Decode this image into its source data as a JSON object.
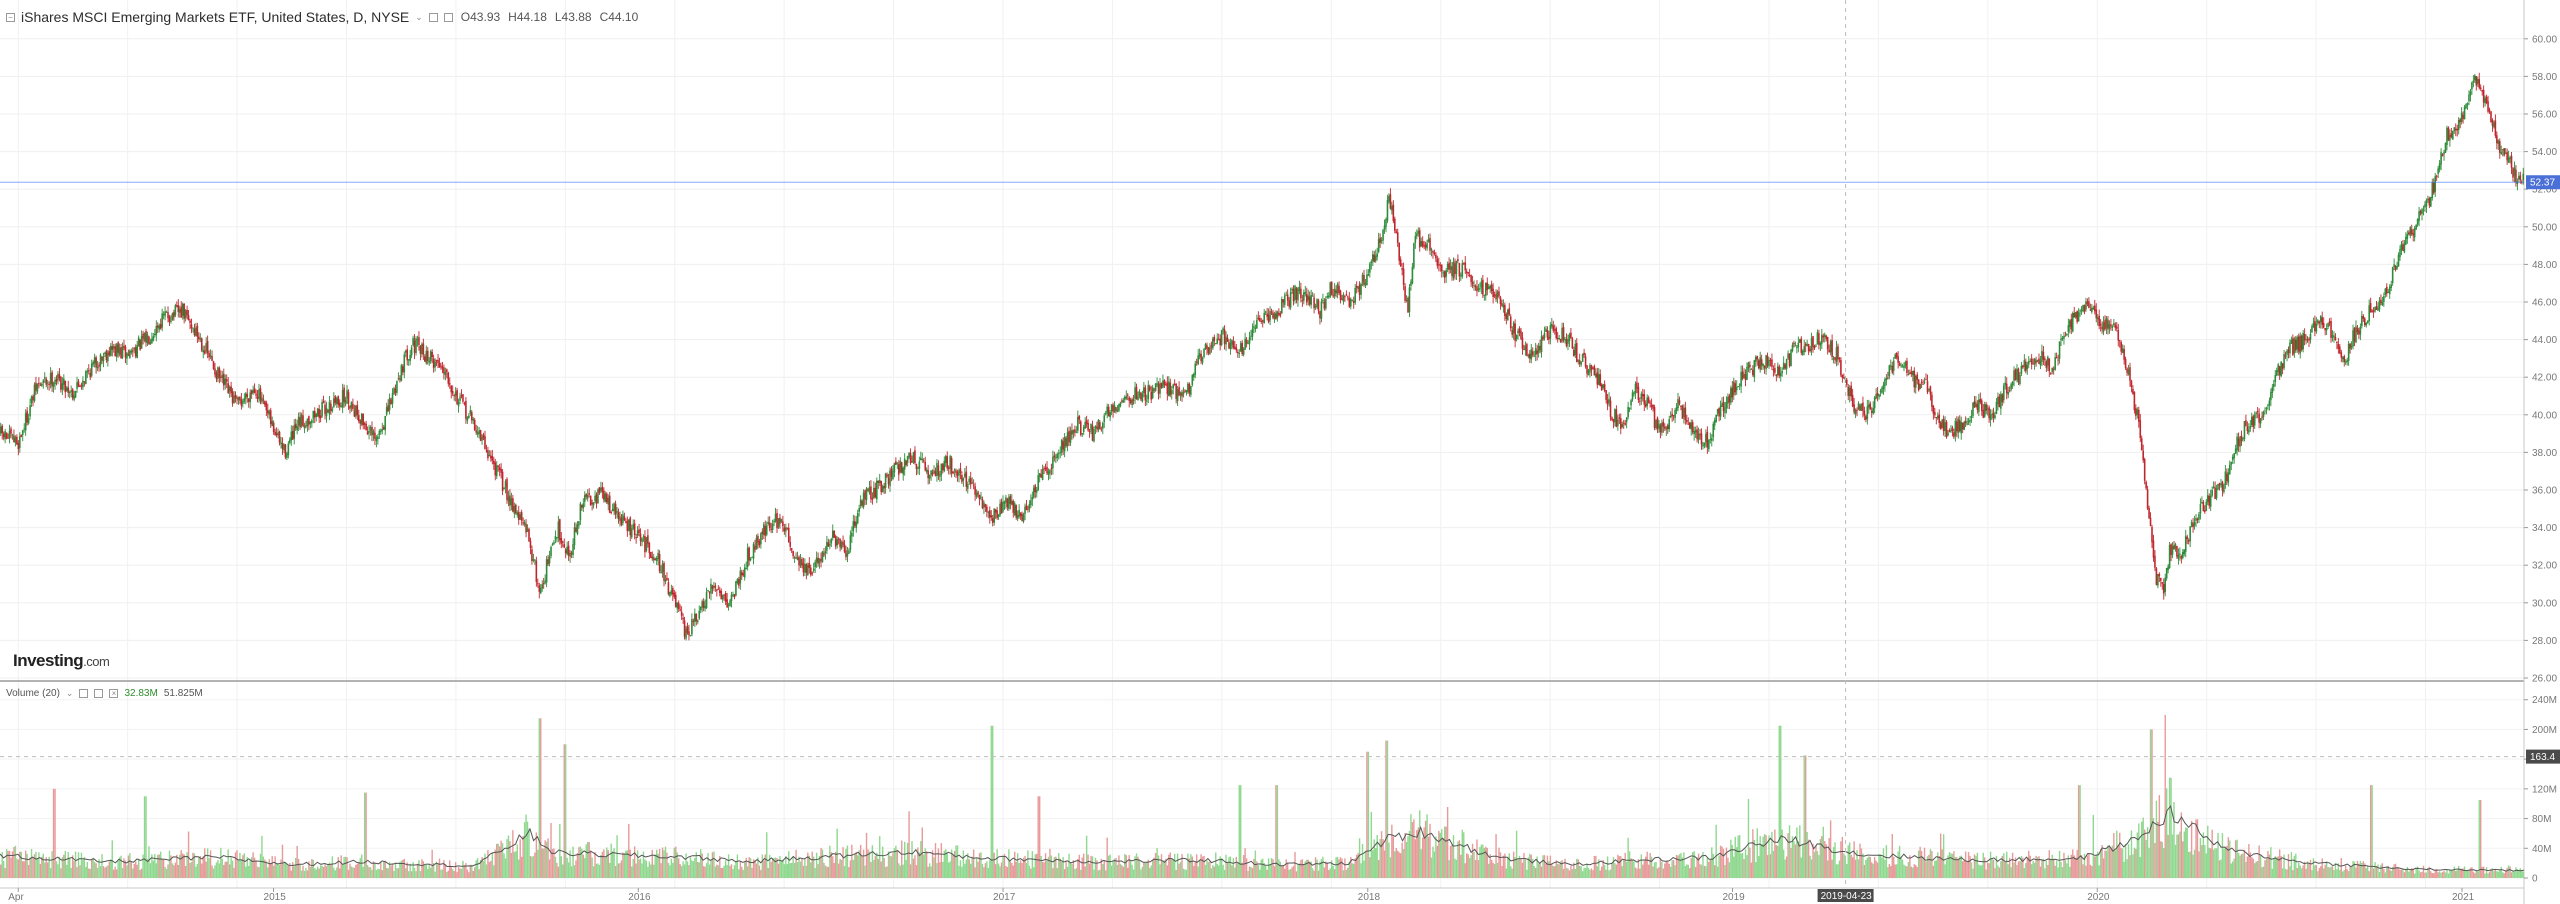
{
  "header": {
    "symbol_title": "iShares MSCI Emerging Markets ETF, United States, D, NYSE",
    "open": "O43.93",
    "high": "H44.18",
    "low": "L43.88",
    "close": "C44.10"
  },
  "volume_pane": {
    "title": "Volume (20)",
    "value_1": "32.83M",
    "value_2": "51.825M"
  },
  "brand": {
    "name": "Investing",
    "suffix": ".com"
  },
  "price_badge": "52.37",
  "volume_badge": "163.4",
  "crosshair_date": "2019-04-23",
  "colors": {
    "up": "#2e8b3a",
    "down": "#c0262d",
    "vol_up": "#8fd88f",
    "vol_down": "#e89a9a",
    "price_line": "#2962ff",
    "badge": "#4a6fd6",
    "volume_ma": "#555555"
  },
  "chart_data": {
    "type": "candlestick",
    "title": "iShares MSCI Emerging Markets ETF, United States, D, NYSE",
    "price_axis": {
      "range": [
        26,
        61
      ],
      "ticks": [
        "26.00",
        "28.00",
        "30.00",
        "32.00",
        "34.00",
        "36.00",
        "38.00",
        "40.00",
        "42.00",
        "44.00",
        "46.00",
        "48.00",
        "50.00",
        "52.00",
        "54.00",
        "56.00",
        "58.00",
        "60.00"
      ]
    },
    "volume_axis": {
      "range": [
        0,
        245
      ],
      "ticks": [
        "0",
        "40M",
        "80M",
        "120M",
        "160M",
        "200M",
        "240M"
      ]
    },
    "x_axis": {
      "labels": [
        {
          "label": "Apr",
          "t": 0.05
        },
        {
          "label": "2015",
          "t": 0.75
        },
        {
          "label": "2016",
          "t": 1.75
        },
        {
          "label": "2017",
          "t": 2.75
        },
        {
          "label": "2018",
          "t": 3.75
        },
        {
          "label": "2019",
          "t": 4.75
        },
        {
          "label": "2020",
          "t": 5.75
        },
        {
          "label": "2021",
          "t": 6.75
        }
      ],
      "t_range": [
        0,
        6.92
      ]
    },
    "crosshair": {
      "t": 5.06,
      "volume": 163.4
    },
    "current_price": 52.37,
    "price_path": [
      [
        0.0,
        39.0
      ],
      [
        0.05,
        38.5
      ],
      [
        0.1,
        41.5
      ],
      [
        0.15,
        42.0
      ],
      [
        0.2,
        41.2
      ],
      [
        0.25,
        42.5
      ],
      [
        0.3,
        43.5
      ],
      [
        0.35,
        43.2
      ],
      [
        0.4,
        44.0
      ],
      [
        0.45,
        45.2
      ],
      [
        0.5,
        45.5
      ],
      [
        0.55,
        44.0
      ],
      [
        0.6,
        42.0
      ],
      [
        0.65,
        40.5
      ],
      [
        0.7,
        41.5
      ],
      [
        0.72,
        40.5
      ],
      [
        0.78,
        38.0
      ],
      [
        0.82,
        39.5
      ],
      [
        0.88,
        40.2
      ],
      [
        0.95,
        41.0
      ],
      [
        1.0,
        39.5
      ],
      [
        1.03,
        38.5
      ],
      [
        1.06,
        40.0
      ],
      [
        1.1,
        42.5
      ],
      [
        1.13,
        43.8
      ],
      [
        1.18,
        43.0
      ],
      [
        1.22,
        42.5
      ],
      [
        1.25,
        41.0
      ],
      [
        1.3,
        39.5
      ],
      [
        1.35,
        37.5
      ],
      [
        1.4,
        35.5
      ],
      [
        1.45,
        33.5
      ],
      [
        1.48,
        30.5
      ],
      [
        1.5,
        32.0
      ],
      [
        1.53,
        34.0
      ],
      [
        1.56,
        32.5
      ],
      [
        1.6,
        35.5
      ],
      [
        1.65,
        35.8
      ],
      [
        1.7,
        34.5
      ],
      [
        1.75,
        33.5
      ],
      [
        1.8,
        32.5
      ],
      [
        1.83,
        31.0
      ],
      [
        1.86,
        29.5
      ],
      [
        1.88,
        28.2
      ],
      [
        1.92,
        29.5
      ],
      [
        1.96,
        31.0
      ],
      [
        2.0,
        30.0
      ],
      [
        2.05,
        32.5
      ],
      [
        2.1,
        34.0
      ],
      [
        2.14,
        34.5
      ],
      [
        2.18,
        32.5
      ],
      [
        2.22,
        31.5
      ],
      [
        2.28,
        33.5
      ],
      [
        2.32,
        32.5
      ],
      [
        2.36,
        35.5
      ],
      [
        2.4,
        36.0
      ],
      [
        2.45,
        37.0
      ],
      [
        2.5,
        37.8
      ],
      [
        2.55,
        36.8
      ],
      [
        2.6,
        37.5
      ],
      [
        2.65,
        36.5
      ],
      [
        2.7,
        35.0
      ],
      [
        2.72,
        34.5
      ],
      [
        2.76,
        35.5
      ],
      [
        2.8,
        34.5
      ],
      [
        2.85,
        36.5
      ],
      [
        2.9,
        38.0
      ],
      [
        2.95,
        39.5
      ],
      [
        3.0,
        39.0
      ],
      [
        3.05,
        40.5
      ],
      [
        3.1,
        41.0
      ],
      [
        3.15,
        41.2
      ],
      [
        3.2,
        41.5
      ],
      [
        3.25,
        41.0
      ],
      [
        3.3,
        43.5
      ],
      [
        3.35,
        44.2
      ],
      [
        3.4,
        43.5
      ],
      [
        3.45,
        44.8
      ],
      [
        3.5,
        45.5
      ],
      [
        3.55,
        46.5
      ],
      [
        3.6,
        46.0
      ],
      [
        3.62,
        45.5
      ],
      [
        3.65,
        46.8
      ],
      [
        3.7,
        46.0
      ],
      [
        3.75,
        47.5
      ],
      [
        3.78,
        49.0
      ],
      [
        3.81,
        51.5
      ],
      [
        3.84,
        48.0
      ],
      [
        3.86,
        45.5
      ],
      [
        3.88,
        49.5
      ],
      [
        3.92,
        49.0
      ],
      [
        3.95,
        47.5
      ],
      [
        4.0,
        47.8
      ],
      [
        4.05,
        47.0
      ],
      [
        4.1,
        46.5
      ],
      [
        4.15,
        44.5
      ],
      [
        4.2,
        43.0
      ],
      [
        4.25,
        44.5
      ],
      [
        4.3,
        44.0
      ],
      [
        4.33,
        43.0
      ],
      [
        4.38,
        42.0
      ],
      [
        4.42,
        40.0
      ],
      [
        4.45,
        39.5
      ],
      [
        4.48,
        41.5
      ],
      [
        4.52,
        40.5
      ],
      [
        4.55,
        39.0
      ],
      [
        4.6,
        40.5
      ],
      [
        4.65,
        39.0
      ],
      [
        4.68,
        38.5
      ],
      [
        4.72,
        40.5
      ],
      [
        4.76,
        41.5
      ],
      [
        4.8,
        42.5
      ],
      [
        4.85,
        43.0
      ],
      [
        4.88,
        42.0
      ],
      [
        4.92,
        43.5
      ],
      [
        4.96,
        43.8
      ],
      [
        5.0,
        44.2
      ],
      [
        5.04,
        43.0
      ],
      [
        5.08,
        40.5
      ],
      [
        5.12,
        40.0
      ],
      [
        5.16,
        41.5
      ],
      [
        5.2,
        43.0
      ],
      [
        5.24,
        42.0
      ],
      [
        5.28,
        41.5
      ],
      [
        5.31,
        40.0
      ],
      [
        5.34,
        39.0
      ],
      [
        5.38,
        39.5
      ],
      [
        5.42,
        40.5
      ],
      [
        5.46,
        40.0
      ],
      [
        5.5,
        41.5
      ],
      [
        5.55,
        42.5
      ],
      [
        5.6,
        43.0
      ],
      [
        5.63,
        42.5
      ],
      [
        5.66,
        44.5
      ],
      [
        5.7,
        45.5
      ],
      [
        5.73,
        46.0
      ],
      [
        5.76,
        45.0
      ],
      [
        5.8,
        44.5
      ],
      [
        5.83,
        42.5
      ],
      [
        5.86,
        40.0
      ],
      [
        5.88,
        36.5
      ],
      [
        5.91,
        31.5
      ],
      [
        5.93,
        30.5
      ],
      [
        5.95,
        33.0
      ],
      [
        5.98,
        32.5
      ],
      [
        6.02,
        34.5
      ],
      [
        6.06,
        35.5
      ],
      [
        6.1,
        36.5
      ],
      [
        6.13,
        38.5
      ],
      [
        6.16,
        39.5
      ],
      [
        6.2,
        40.0
      ],
      [
        6.24,
        42.0
      ],
      [
        6.28,
        43.5
      ],
      [
        6.32,
        44.0
      ],
      [
        6.36,
        45.0
      ],
      [
        6.4,
        44.2
      ],
      [
        6.43,
        43.0
      ],
      [
        6.46,
        44.5
      ],
      [
        6.5,
        45.5
      ],
      [
        6.54,
        46.5
      ],
      [
        6.58,
        48.5
      ],
      [
        6.62,
        50.0
      ],
      [
        6.65,
        51.0
      ],
      [
        6.68,
        52.5
      ],
      [
        6.71,
        55.0
      ],
      [
        6.74,
        55.5
      ],
      [
        6.77,
        57.0
      ],
      [
        6.79,
        58.0
      ],
      [
        6.82,
        56.0
      ],
      [
        6.85,
        54.5
      ],
      [
        6.88,
        53.5
      ],
      [
        6.9,
        52.4
      ]
    ],
    "volume_ma_path": [
      [
        0.0,
        30
      ],
      [
        0.3,
        22
      ],
      [
        0.6,
        28
      ],
      [
        0.8,
        18
      ],
      [
        1.0,
        22
      ],
      [
        1.3,
        16
      ],
      [
        1.45,
        60
      ],
      [
        1.52,
        34
      ],
      [
        1.75,
        30
      ],
      [
        1.9,
        28
      ],
      [
        2.05,
        22
      ],
      [
        2.3,
        30
      ],
      [
        2.5,
        35
      ],
      [
        2.7,
        27
      ],
      [
        3.0,
        22
      ],
      [
        3.3,
        24
      ],
      [
        3.5,
        18
      ],
      [
        3.7,
        20
      ],
      [
        3.8,
        52
      ],
      [
        3.9,
        62
      ],
      [
        4.1,
        28
      ],
      [
        4.3,
        18
      ],
      [
        4.5,
        24
      ],
      [
        4.7,
        28
      ],
      [
        4.8,
        44
      ],
      [
        4.9,
        52
      ],
      [
        5.1,
        32
      ],
      [
        5.4,
        24
      ],
      [
        5.7,
        26
      ],
      [
        5.85,
        50
      ],
      [
        5.95,
        88
      ],
      [
        6.1,
        38
      ],
      [
        6.3,
        22
      ],
      [
        6.6,
        12
      ],
      [
        6.9,
        10
      ]
    ]
  }
}
